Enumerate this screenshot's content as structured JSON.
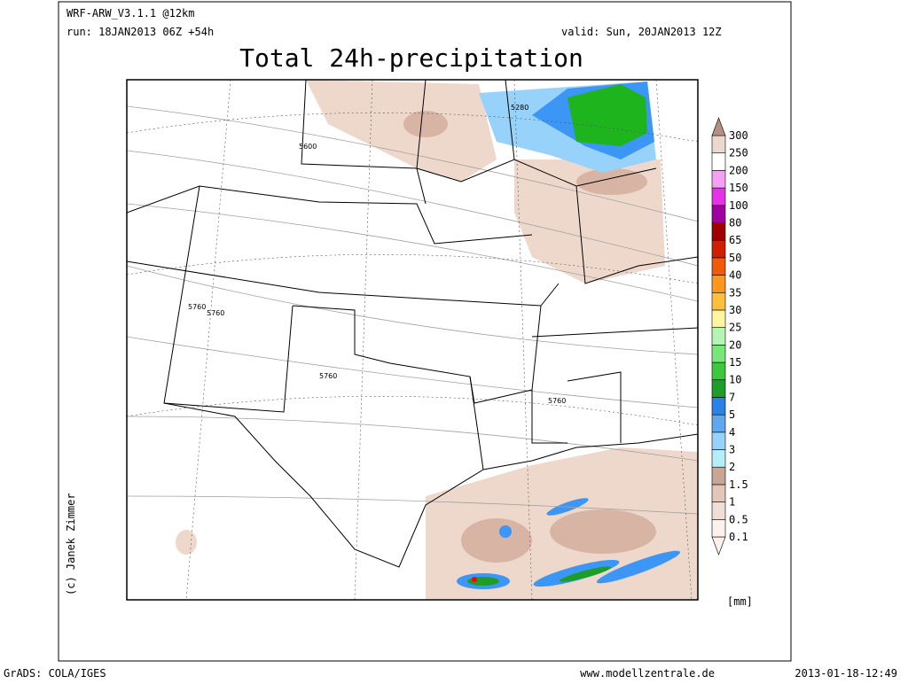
{
  "header": {
    "model": "WRF-ARW_V3.1.1 @12km",
    "run": "run: 18JAN2013 06Z +54h",
    "valid": "valid: Sun, 20JAN2013 12Z",
    "title": "Total 24h-precipitation"
  },
  "credit": "(c) Janek Zimmer",
  "map": {
    "contour_labels": [
      "5280",
      "5600",
      "5760",
      "5760",
      "5760",
      "5760"
    ]
  },
  "colorbar": {
    "unit": "[mm]",
    "items": [
      {
        "label": "0.1",
        "color": "#fdf1ec"
      },
      {
        "label": "0.5",
        "color": "#f0ddd3"
      },
      {
        "label": "1",
        "color": "#e2c6b8"
      },
      {
        "label": "1.5",
        "color": "#c9a595"
      },
      {
        "label": "2",
        "color": "#b4eefa"
      },
      {
        "label": "3",
        "color": "#96d2fa"
      },
      {
        "label": "4",
        "color": "#5fa8f0"
      },
      {
        "label": "5",
        "color": "#2a82e6"
      },
      {
        "label": "7",
        "color": "#1e9e28"
      },
      {
        "label": "10",
        "color": "#3cc83c"
      },
      {
        "label": "15",
        "color": "#78e678"
      },
      {
        "label": "20",
        "color": "#b4f5b4"
      },
      {
        "label": "25",
        "color": "#fff5a0"
      },
      {
        "label": "30",
        "color": "#ffbe3c"
      },
      {
        "label": "35",
        "color": "#ff961e"
      },
      {
        "label": "40",
        "color": "#f05a0a"
      },
      {
        "label": "50",
        "color": "#d21e00"
      },
      {
        "label": "65",
        "color": "#a00000"
      },
      {
        "label": "80",
        "color": "#a000a0"
      },
      {
        "label": "100",
        "color": "#e632e6"
      },
      {
        "label": "150",
        "color": "#f5a0f5"
      },
      {
        "label": "200",
        "color": "#ffffff"
      },
      {
        "label": "250",
        "color": "#ead8cf"
      },
      {
        "label": "300",
        "color": "#b49080"
      }
    ]
  },
  "footer": {
    "left": "GrADS: COLA/IGES",
    "center": "www.modellzentrale.de",
    "right": "2013-01-18-12:49"
  }
}
